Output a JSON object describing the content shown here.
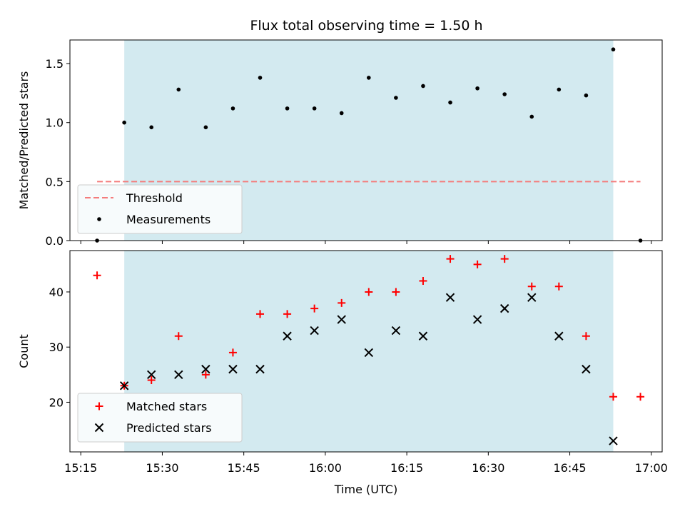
{
  "colors": {
    "observing_window": "#d3eaf0",
    "threshold": "#f47c7c",
    "measurements": "#000000",
    "matched": "#ff0000",
    "predicted": "#000000",
    "legend_bg": "#f7fbfc"
  },
  "chart_data": [
    {
      "type": "scatter",
      "title": "Flux total observing time = 1.50 h",
      "xlabel": "",
      "ylabel": "Matched/Predicted stars",
      "xlim": [
        "15:13",
        "17:02"
      ],
      "ylim": [
        0,
        1.7
      ],
      "yticks": [
        "0.0",
        "0.5",
        "1.0",
        "1.5"
      ],
      "observing_window": [
        "15:23",
        "16:53"
      ],
      "legend_position": "lower left",
      "legend": {
        "threshold": "Threshold",
        "measurements": "Measurements"
      },
      "threshold": {
        "y": 0.5,
        "x_range": [
          "15:18",
          "16:58"
        ]
      },
      "series": [
        {
          "name": "Measurements",
          "marker": "dot",
          "x": [
            "15:18",
            "15:23",
            "15:28",
            "15:33",
            "15:38",
            "15:43",
            "15:48",
            "15:53",
            "15:58",
            "16:03",
            "16:08",
            "16:13",
            "16:18",
            "16:23",
            "16:28",
            "16:33",
            "16:38",
            "16:43",
            "16:48",
            "16:53",
            "16:58"
          ],
          "y": [
            0.0,
            1.0,
            0.96,
            1.28,
            0.96,
            1.12,
            1.38,
            1.12,
            1.12,
            1.08,
            1.38,
            1.21,
            1.31,
            1.17,
            1.29,
            1.24,
            1.05,
            1.28,
            1.23,
            1.62,
            0.0
          ]
        }
      ]
    },
    {
      "type": "scatter",
      "xlabel": "Time (UTC)",
      "ylabel": "Count",
      "xlim": [
        "15:13",
        "17:02"
      ],
      "ylim": [
        11,
        47.5
      ],
      "yticks": [
        "20",
        "30",
        "40"
      ],
      "xticks": [
        "15:15",
        "15:30",
        "15:45",
        "16:00",
        "16:15",
        "16:30",
        "16:45",
        "17:00"
      ],
      "observing_window": [
        "15:23",
        "16:53"
      ],
      "legend_position": "lower left",
      "legend": {
        "matched": "Matched stars",
        "predicted": "Predicted stars"
      },
      "series": [
        {
          "name": "Matched stars",
          "marker": "plus",
          "x": [
            "15:18",
            "15:23",
            "15:28",
            "15:33",
            "15:38",
            "15:43",
            "15:48",
            "15:53",
            "15:58",
            "16:03",
            "16:08",
            "16:13",
            "16:18",
            "16:23",
            "16:28",
            "16:33",
            "16:38",
            "16:43",
            "16:48",
            "16:53",
            "16:58"
          ],
          "y": [
            43,
            23,
            24,
            32,
            25,
            29,
            36,
            36,
            37,
            38,
            40,
            40,
            42,
            46,
            45,
            46,
            41,
            41,
            32,
            21,
            21
          ]
        },
        {
          "name": "Predicted stars",
          "marker": "x",
          "x": [
            "15:23",
            "15:28",
            "15:33",
            "15:38",
            "15:43",
            "15:48",
            "15:53",
            "15:58",
            "16:03",
            "16:08",
            "16:13",
            "16:18",
            "16:23",
            "16:28",
            "16:33",
            "16:38",
            "16:43",
            "16:48",
            "16:53"
          ],
          "y": [
            23,
            25,
            25,
            26,
            26,
            26,
            32,
            33,
            35,
            29,
            33,
            32,
            39,
            35,
            37,
            39,
            32,
            26,
            13
          ]
        }
      ]
    }
  ]
}
